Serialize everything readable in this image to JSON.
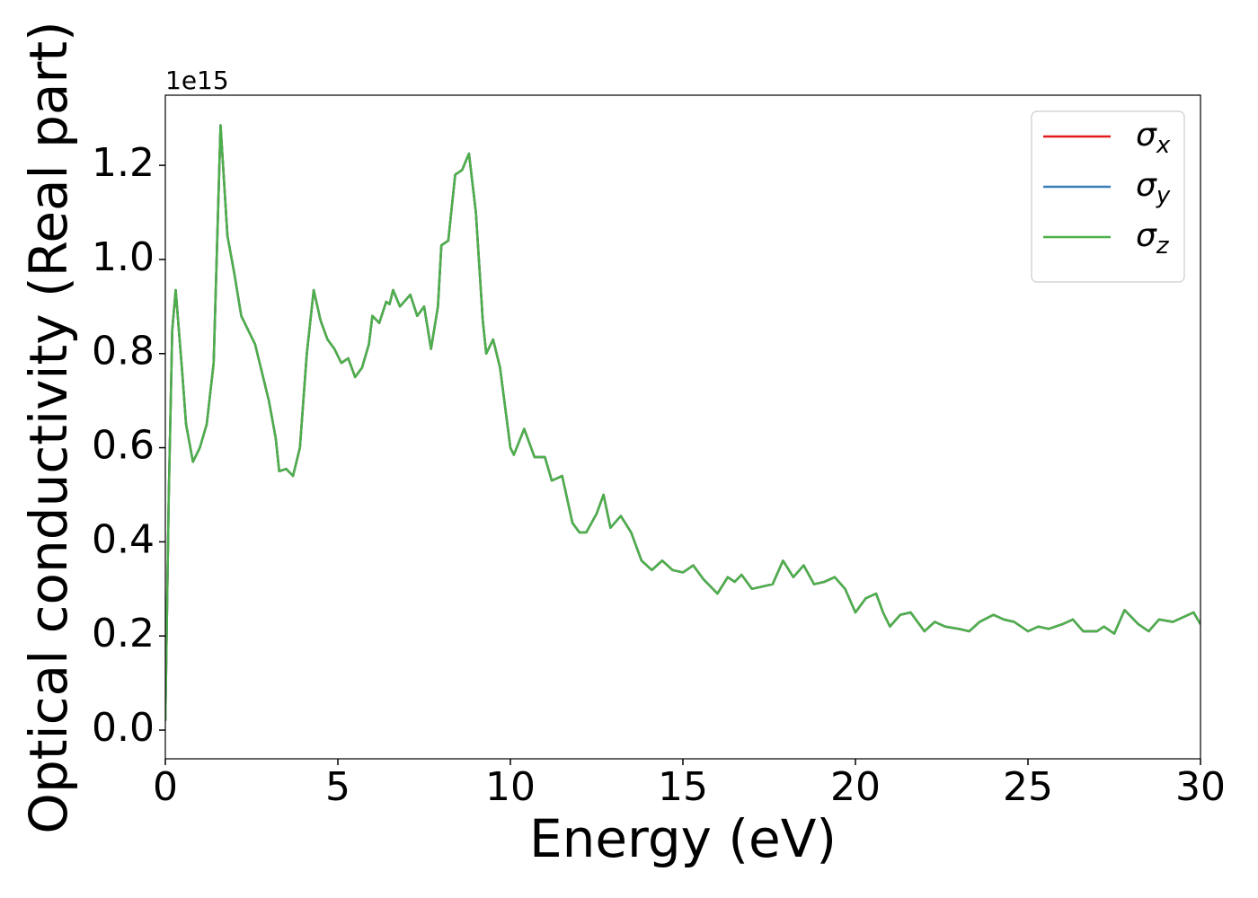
{
  "chart_data": {
    "type": "line",
    "x_label": "Energy (eV)",
    "y_label": "Optical conductivity (Real part)",
    "y_offset_label": "1e15",
    "xlim": [
      0,
      30
    ],
    "ylim": [
      -0.061,
      1.349
    ],
    "xticks": [
      0,
      5,
      10,
      15,
      20,
      25,
      30
    ],
    "yticks": [
      {
        "value": 0,
        "label": "0.0"
      },
      0.2,
      0.4,
      0.6,
      0.8,
      {
        "value": 1,
        "label": "1.0"
      },
      1.2
    ],
    "grid": false,
    "legend": "upper right",
    "x": [
      0,
      0.1,
      0.2,
      0.3,
      0.5,
      0.6,
      0.8,
      1.0,
      1.2,
      1.4,
      1.6,
      1.8,
      2.0,
      2.2,
      2.4,
      2.6,
      2.8,
      3.0,
      3.2,
      3.3,
      3.5,
      3.7,
      3.9,
      4.1,
      4.3,
      4.5,
      4.7,
      4.9,
      5.1,
      5.3,
      5.5,
      5.7,
      5.9,
      6.0,
      6.2,
      6.4,
      6.5,
      6.6,
      6.8,
      7.1,
      7.3,
      7.5,
      7.7,
      7.9,
      8.0,
      8.2,
      8.4,
      8.6,
      8.8,
      9.0,
      9.2,
      9.3,
      9.5,
      9.7,
      10.0,
      10.1,
      10.4,
      10.7,
      11.0,
      11.2,
      11.5,
      11.8,
      12.0,
      12.2,
      12.5,
      12.7,
      12.9,
      13.2,
      13.5,
      13.8,
      14.1,
      14.4,
      14.7,
      15.0,
      15.3,
      15.6,
      16.0,
      16.3,
      16.5,
      16.7,
      17.0,
      17.3,
      17.6,
      17.9,
      18.2,
      18.5,
      18.8,
      19.1,
      19.4,
      19.7,
      20.0,
      20.3,
      20.6,
      20.8,
      21.0,
      21.3,
      21.6,
      22.0,
      22.3,
      22.6,
      23.0,
      23.3,
      23.6,
      24.0,
      24.3,
      24.6,
      25.0,
      25.3,
      25.6,
      26.0,
      26.3,
      26.6,
      27.0,
      27.2,
      27.5,
      27.8,
      28.2,
      28.5,
      28.8,
      29.2,
      29.5,
      29.8,
      30.0
    ],
    "series": [
      {
        "name": "σx",
        "color": "#e41a1c",
        "values": [
          0.02,
          0.5,
          0.85,
          0.935,
          0.75,
          0.65,
          0.57,
          0.6,
          0.65,
          0.78,
          1.285,
          1.05,
          0.97,
          0.88,
          0.85,
          0.82,
          0.76,
          0.7,
          0.62,
          0.55,
          0.555,
          0.54,
          0.6,
          0.8,
          0.935,
          0.87,
          0.83,
          0.81,
          0.78,
          0.79,
          0.75,
          0.77,
          0.82,
          0.88,
          0.865,
          0.91,
          0.905,
          0.935,
          0.9,
          0.925,
          0.88,
          0.9,
          0.81,
          0.9,
          1.03,
          1.04,
          1.18,
          1.19,
          1.225,
          1.1,
          0.87,
          0.8,
          0.83,
          0.77,
          0.6,
          0.585,
          0.64,
          0.58,
          0.58,
          0.53,
          0.54,
          0.44,
          0.42,
          0.42,
          0.46,
          0.5,
          0.43,
          0.455,
          0.42,
          0.36,
          0.34,
          0.36,
          0.34,
          0.335,
          0.35,
          0.32,
          0.29,
          0.325,
          0.315,
          0.33,
          0.3,
          0.305,
          0.31,
          0.36,
          0.325,
          0.35,
          0.31,
          0.315,
          0.325,
          0.3,
          0.25,
          0.28,
          0.29,
          0.25,
          0.22,
          0.245,
          0.25,
          0.21,
          0.23,
          0.22,
          0.215,
          0.21,
          0.23,
          0.245,
          0.235,
          0.23,
          0.21,
          0.22,
          0.215,
          0.225,
          0.235,
          0.21,
          0.21,
          0.22,
          0.205,
          0.255,
          0.225,
          0.21,
          0.235,
          0.23,
          0.24,
          0.25,
          0.225
        ]
      },
      {
        "name": "σy",
        "color": "#377eb8",
        "values": [
          0.02,
          0.5,
          0.85,
          0.935,
          0.75,
          0.65,
          0.57,
          0.6,
          0.65,
          0.78,
          1.285,
          1.05,
          0.97,
          0.88,
          0.85,
          0.82,
          0.76,
          0.7,
          0.62,
          0.55,
          0.555,
          0.54,
          0.6,
          0.8,
          0.935,
          0.87,
          0.83,
          0.81,
          0.78,
          0.79,
          0.75,
          0.77,
          0.82,
          0.88,
          0.865,
          0.91,
          0.905,
          0.935,
          0.9,
          0.925,
          0.88,
          0.9,
          0.81,
          0.9,
          1.03,
          1.04,
          1.18,
          1.19,
          1.225,
          1.1,
          0.87,
          0.8,
          0.83,
          0.77,
          0.6,
          0.585,
          0.64,
          0.58,
          0.58,
          0.53,
          0.54,
          0.44,
          0.42,
          0.42,
          0.46,
          0.5,
          0.43,
          0.455,
          0.42,
          0.36,
          0.34,
          0.36,
          0.34,
          0.335,
          0.35,
          0.32,
          0.29,
          0.325,
          0.315,
          0.33,
          0.3,
          0.305,
          0.31,
          0.36,
          0.325,
          0.35,
          0.31,
          0.315,
          0.325,
          0.3,
          0.25,
          0.28,
          0.29,
          0.25,
          0.22,
          0.245,
          0.25,
          0.21,
          0.23,
          0.22,
          0.215,
          0.21,
          0.23,
          0.245,
          0.235,
          0.23,
          0.21,
          0.22,
          0.215,
          0.225,
          0.235,
          0.21,
          0.21,
          0.22,
          0.205,
          0.255,
          0.225,
          0.21,
          0.235,
          0.23,
          0.24,
          0.25,
          0.225
        ]
      },
      {
        "name": "σz",
        "color": "#4daf4a",
        "values": [
          0.02,
          0.5,
          0.85,
          0.935,
          0.75,
          0.65,
          0.57,
          0.6,
          0.65,
          0.78,
          1.285,
          1.05,
          0.97,
          0.88,
          0.85,
          0.82,
          0.76,
          0.7,
          0.62,
          0.55,
          0.555,
          0.54,
          0.6,
          0.8,
          0.935,
          0.87,
          0.83,
          0.81,
          0.78,
          0.79,
          0.75,
          0.77,
          0.82,
          0.88,
          0.865,
          0.91,
          0.905,
          0.935,
          0.9,
          0.925,
          0.88,
          0.9,
          0.81,
          0.9,
          1.03,
          1.04,
          1.18,
          1.19,
          1.225,
          1.1,
          0.87,
          0.8,
          0.83,
          0.77,
          0.6,
          0.585,
          0.64,
          0.58,
          0.58,
          0.53,
          0.54,
          0.44,
          0.42,
          0.42,
          0.46,
          0.5,
          0.43,
          0.455,
          0.42,
          0.36,
          0.34,
          0.36,
          0.34,
          0.335,
          0.35,
          0.32,
          0.29,
          0.325,
          0.315,
          0.33,
          0.3,
          0.305,
          0.31,
          0.36,
          0.325,
          0.35,
          0.31,
          0.315,
          0.325,
          0.3,
          0.25,
          0.28,
          0.29,
          0.25,
          0.22,
          0.245,
          0.25,
          0.21,
          0.23,
          0.22,
          0.215,
          0.21,
          0.23,
          0.245,
          0.235,
          0.23,
          0.21,
          0.22,
          0.215,
          0.225,
          0.235,
          0.21,
          0.21,
          0.22,
          0.205,
          0.255,
          0.225,
          0.21,
          0.235,
          0.23,
          0.24,
          0.25,
          0.225
        ]
      }
    ]
  }
}
